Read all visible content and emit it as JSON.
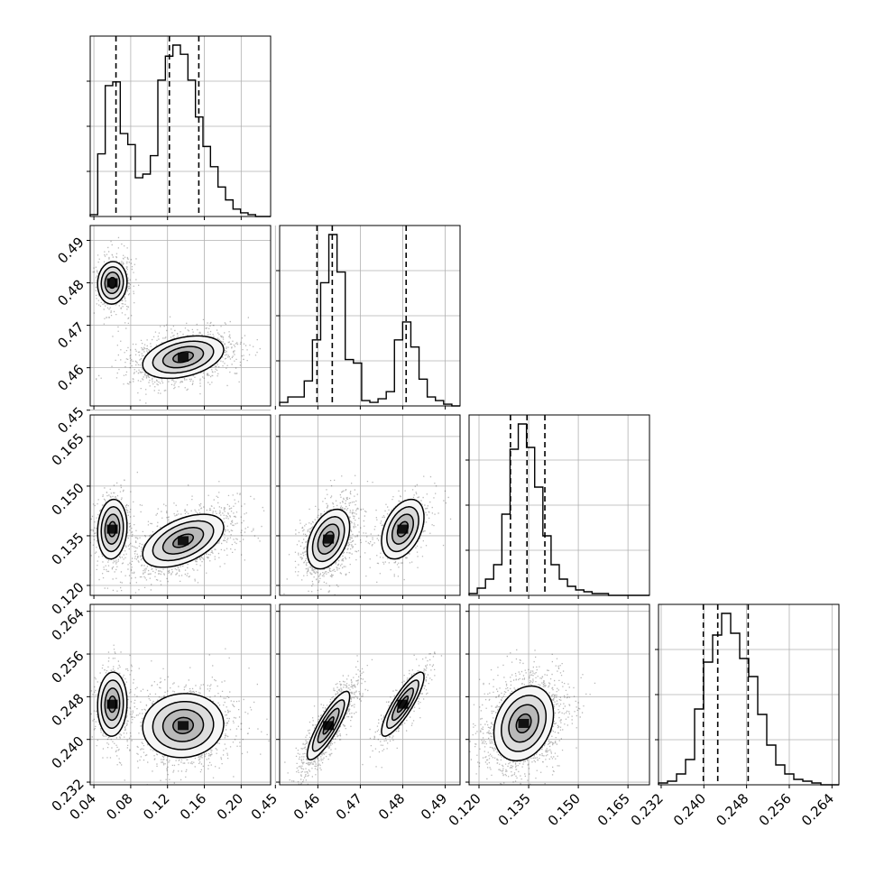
{
  "chart_data": {
    "type": "corner",
    "grid": true,
    "parameters": [
      {
        "range": [
          0.036,
          0.232
        ],
        "ticks": [
          "0.04",
          "0.08",
          "0.12",
          "0.16",
          "0.20"
        ],
        "quantiles": [
          0.064,
          0.122,
          0.154
        ],
        "modes": [
          {
            "weight": 0.3,
            "mean": 0.06,
            "sd": 0.008
          },
          {
            "weight": 0.7,
            "mean": 0.137,
            "sd": 0.022
          }
        ],
        "hist": [
          0.01,
          0.34,
          0.71,
          0.73,
          0.45,
          0.39,
          0.21,
          0.23,
          0.33,
          0.74,
          0.87,
          0.93,
          0.88,
          0.74,
          0.54,
          0.38,
          0.27,
          0.16,
          0.09,
          0.04,
          0.02,
          0.01,
          0,
          0
        ]
      },
      {
        "range": [
          0.451,
          0.4935
        ],
        "ticks": [
          "0.45",
          "0.46",
          "0.47",
          "0.48",
          "0.49"
        ],
        "quantiles": [
          0.4598,
          0.4634,
          0.4808
        ],
        "modes": [
          {
            "weight": 0.7,
            "mean": 0.4625,
            "sd": 0.0025
          },
          {
            "weight": 0.3,
            "mean": 0.48,
            "sd": 0.0025
          }
        ],
        "hist": [
          0.02,
          0.05,
          0.05,
          0.14,
          0.37,
          0.69,
          0.96,
          0.75,
          0.26,
          0.24,
          0.03,
          0.02,
          0.04,
          0.08,
          0.37,
          0.47,
          0.33,
          0.15,
          0.05,
          0.03,
          0.01,
          0
        ]
      },
      {
        "range": [
          0.117,
          0.1715
        ],
        "ticks": [
          "0.120",
          "0.135",
          "0.150",
          "0.165"
        ],
        "quantiles": [
          0.1295,
          0.1345,
          0.1399
        ],
        "modes": [
          {
            "weight": 1.0,
            "mean": 0.1345,
            "sd": 0.0045
          }
        ],
        "hist": [
          0.01,
          0.04,
          0.09,
          0.17,
          0.45,
          0.81,
          0.95,
          0.82,
          0.6,
          0.33,
          0.17,
          0.09,
          0.05,
          0.03,
          0.02,
          0.01,
          0.01,
          0,
          0,
          0,
          0,
          0
        ]
      },
      {
        "range": [
          0.2315,
          0.2653
        ],
        "ticks": [
          "0.232",
          "0.240",
          "0.248",
          "0.256",
          "0.264"
        ],
        "quantiles": [
          0.2399,
          0.2426,
          0.2483
        ],
        "modes": [
          {
            "weight": 0.68,
            "mean": 0.2426,
            "sd": 0.0032
          },
          {
            "weight": 0.32,
            "mean": 0.2466,
            "sd": 0.003
          }
        ],
        "hist": [
          0.01,
          0.02,
          0.06,
          0.14,
          0.42,
          0.68,
          0.83,
          0.95,
          0.84,
          0.7,
          0.6,
          0.39,
          0.22,
          0.11,
          0.06,
          0.03,
          0.02,
          0.01,
          0,
          0
        ]
      }
    ],
    "clusters": {
      "1-0": [
        {
          "center": [
            0.06,
            0.48
          ],
          "sd": [
            0.008,
            0.0025
          ],
          "rho": 0.05,
          "weight": 0.3
        },
        {
          "center": [
            0.137,
            0.4625
          ],
          "sd": [
            0.022,
            0.0025
          ],
          "rho": 0.35,
          "weight": 0.7
        }
      ],
      "2-0": [
        {
          "center": [
            0.06,
            0.137
          ],
          "sd": [
            0.008,
            0.0045
          ],
          "rho": 0.1,
          "weight": 0.3
        },
        {
          "center": [
            0.137,
            0.1335
          ],
          "sd": [
            0.022,
            0.004
          ],
          "rho": 0.5,
          "weight": 0.7
        }
      ],
      "2-1": [
        {
          "center": [
            0.4625,
            0.134
          ],
          "sd": [
            0.0025,
            0.0045
          ],
          "rho": 0.4,
          "weight": 0.7
        },
        {
          "center": [
            0.48,
            0.137
          ],
          "sd": [
            0.0025,
            0.0045
          ],
          "rho": 0.4,
          "weight": 0.3
        }
      ],
      "3-0": [
        {
          "center": [
            0.06,
            0.2466
          ],
          "sd": [
            0.008,
            0.003
          ],
          "rho": 0.05,
          "weight": 0.3
        },
        {
          "center": [
            0.137,
            0.2426
          ],
          "sd": [
            0.022,
            0.003
          ],
          "rho": 0.05,
          "weight": 0.7
        }
      ],
      "3-1": [
        {
          "center": [
            0.4625,
            0.2426
          ],
          "sd": [
            0.0025,
            0.0032
          ],
          "rho": 0.85,
          "weight": 0.7
        },
        {
          "center": [
            0.48,
            0.2466
          ],
          "sd": [
            0.0025,
            0.003
          ],
          "rho": 0.85,
          "weight": 0.3
        }
      ],
      "3-2": [
        {
          "center": [
            0.1335,
            0.243
          ],
          "sd": [
            0.0045,
            0.0035
          ],
          "rho": 0.25,
          "weight": 1.0
        }
      ]
    }
  }
}
